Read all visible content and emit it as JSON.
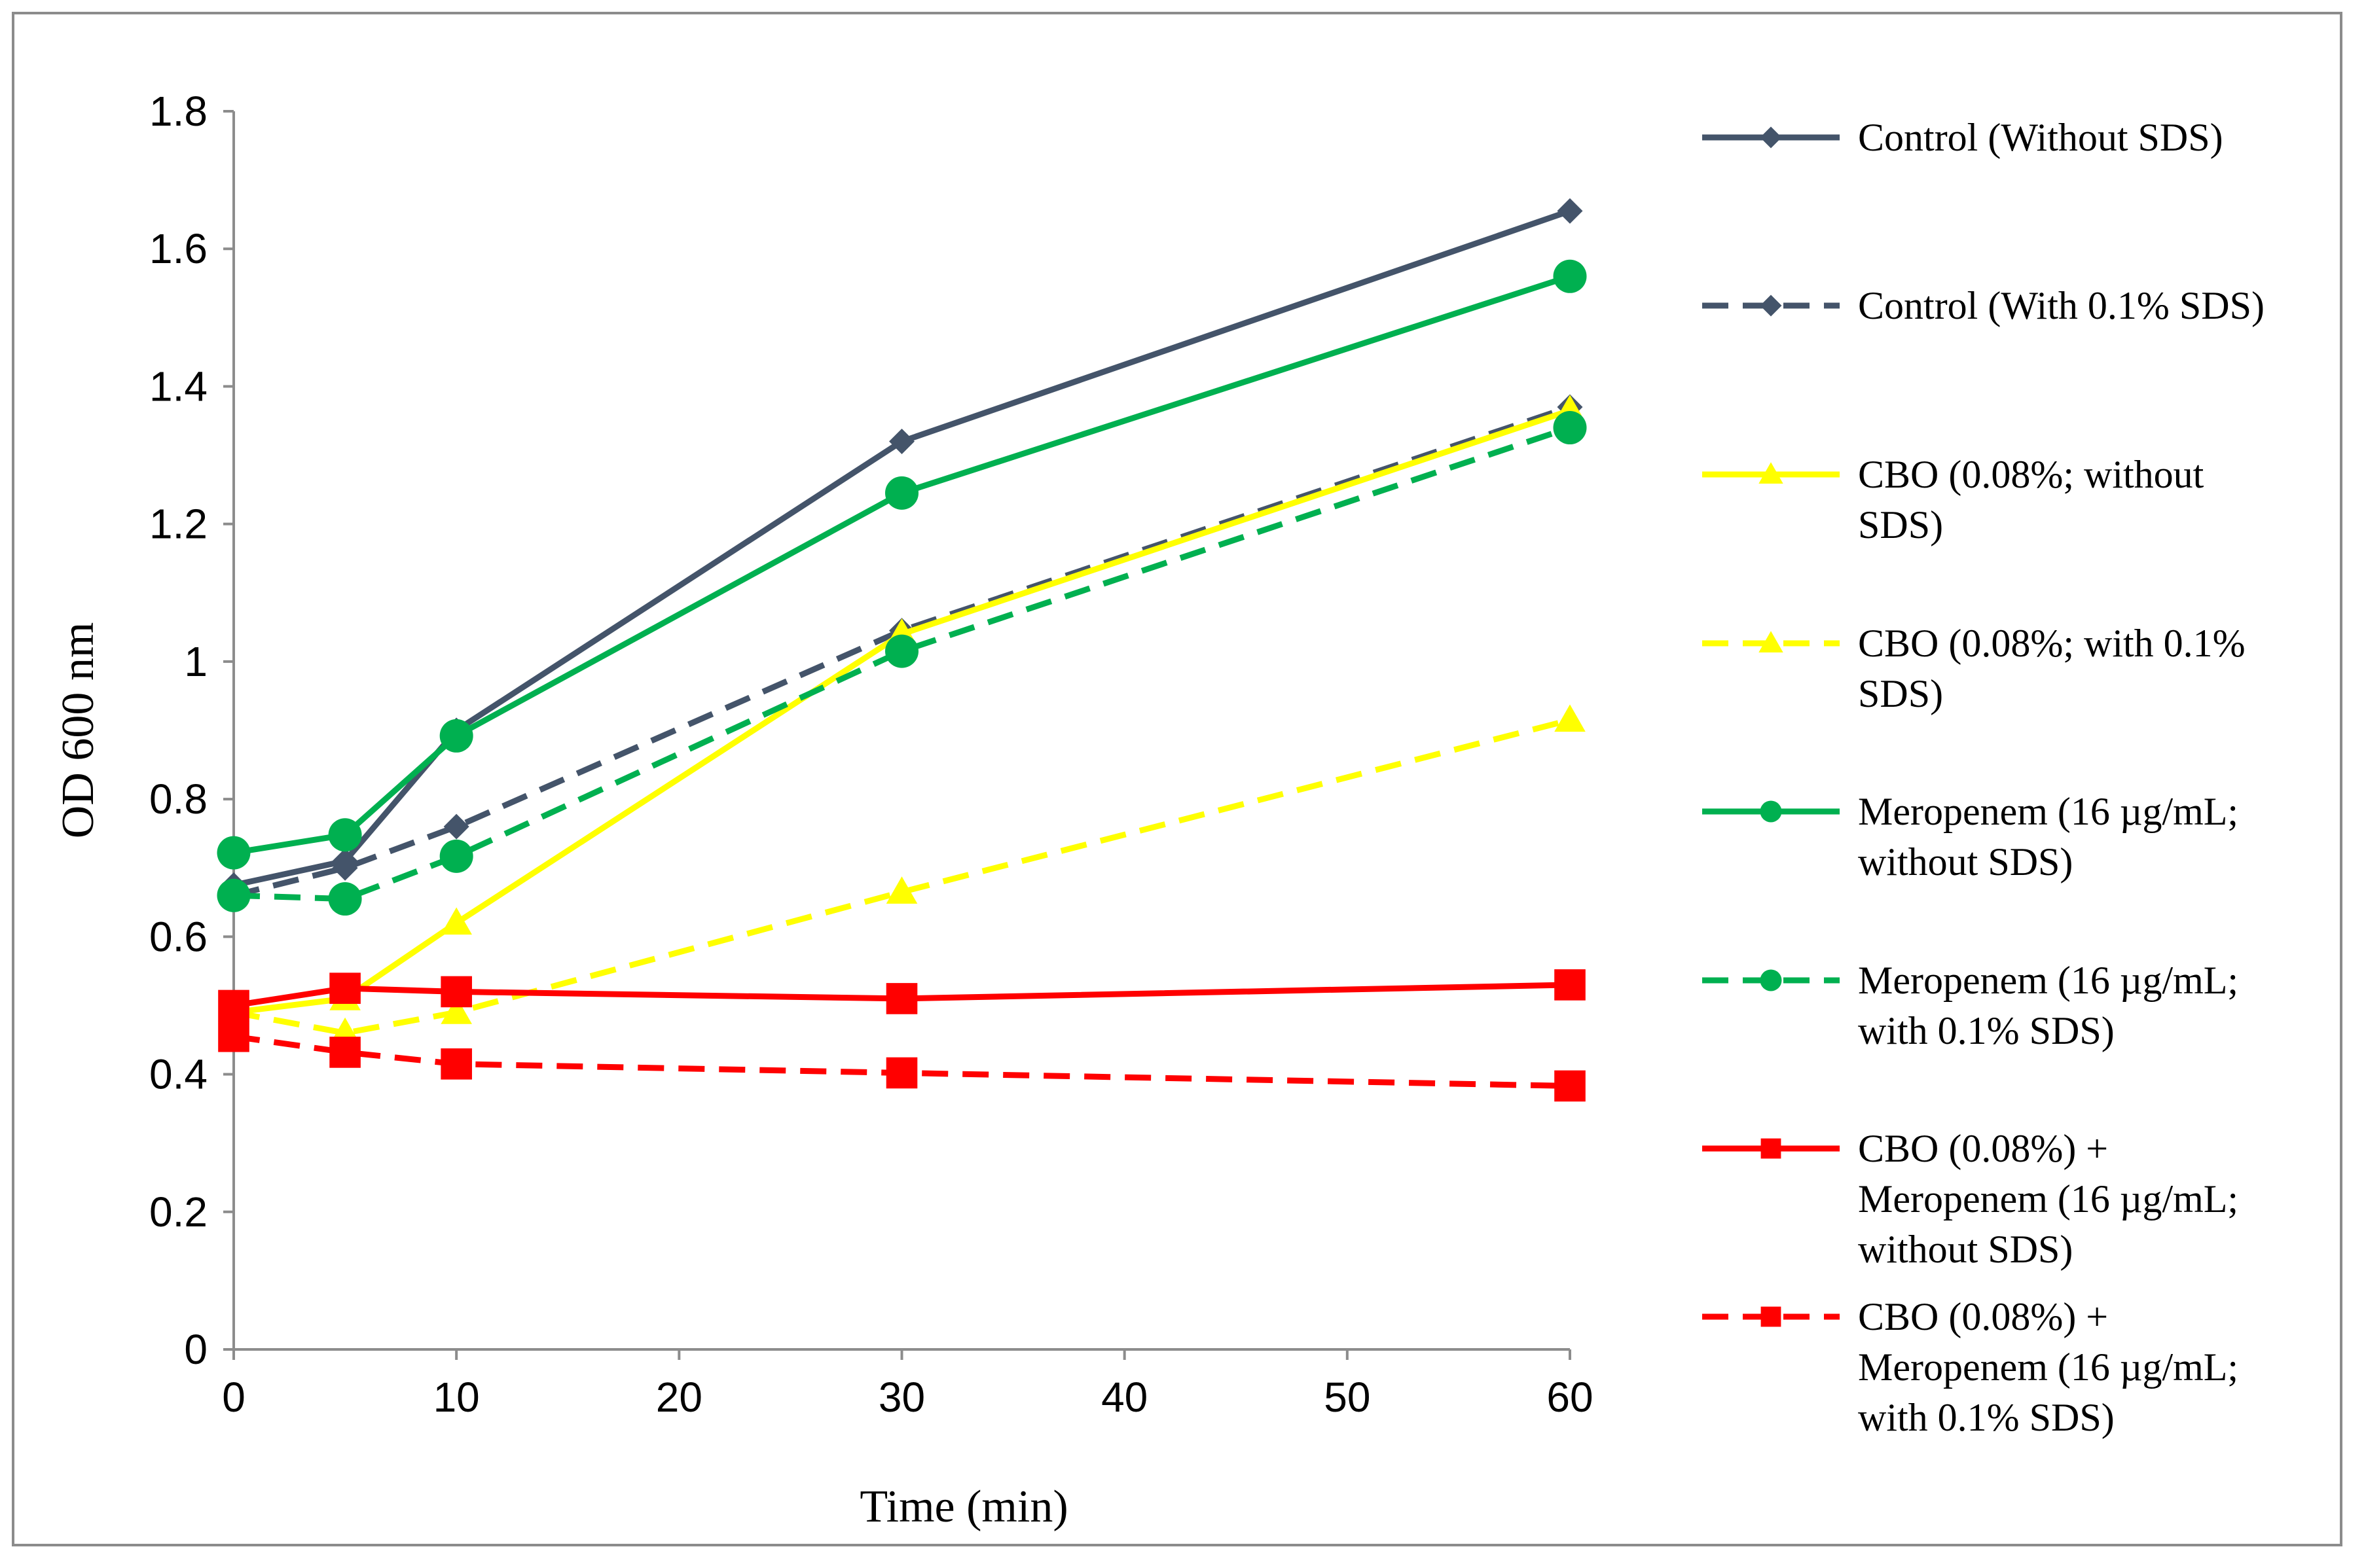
{
  "chart_data": {
    "type": "line",
    "title": "",
    "xlabel": "Time (min)",
    "ylabel": "OD 600 nm",
    "xlim": [
      0,
      60
    ],
    "ylim": [
      0,
      1.8
    ],
    "x_ticks": [
      "0",
      "10",
      "20",
      "30",
      "40",
      "50",
      "60"
    ],
    "y_ticks": [
      "0",
      "0.2",
      "0.4",
      "0.6",
      "0.8",
      "1",
      "1.2",
      "1.4",
      "1.6",
      "1.8"
    ],
    "grid": false,
    "legend_position": "right",
    "x": [
      0,
      5,
      10,
      30,
      60
    ],
    "series": [
      {
        "name": "Control (Without SDS)",
        "legend_lines": [
          "Control (Without SDS)"
        ],
        "color": "#44546A",
        "dash": false,
        "marker": "diamond",
        "values": [
          0.675,
          0.71,
          0.9,
          1.32,
          1.655
        ]
      },
      {
        "name": "Control (With 0.1% SDS)",
        "legend_lines": [
          "Control (With 0.1% SDS)"
        ],
        "color": "#44546A",
        "dash": true,
        "marker": "diamond",
        "values": [
          0.66,
          0.7,
          0.76,
          1.045,
          1.37
        ]
      },
      {
        "name": "CBO (0.08%; without SDS)",
        "legend_lines": [
          "CBO (0.08%; without",
          "SDS)"
        ],
        "color": "#FFFF00",
        "dash": false,
        "marker": "triangle",
        "values": [
          0.49,
          0.51,
          0.62,
          1.04,
          1.365
        ]
      },
      {
        "name": "CBO (0.08%; with 0.1% SDS)",
        "legend_lines": [
          "CBO (0.08%; with 0.1%",
          "SDS)"
        ],
        "color": "#FFFF00",
        "dash": true,
        "marker": "triangle",
        "values": [
          0.49,
          0.46,
          0.49,
          0.665,
          0.915
        ]
      },
      {
        "name": "Meropenem (16 µg/mL; without SDS)",
        "legend_lines": [
          "Meropenem (16 µg/mL;",
          "without SDS)"
        ],
        "color": "#00B050",
        "dash": false,
        "marker": "circle",
        "values": [
          0.722,
          0.748,
          0.892,
          1.245,
          1.56
        ]
      },
      {
        "name": "Meropenem (16 µg/mL; with 0.1% SDS)",
        "legend_lines": [
          "Meropenem (16 µg/mL;",
          "with 0.1% SDS)"
        ],
        "color": "#00B050",
        "dash": true,
        "marker": "circle",
        "values": [
          0.66,
          0.655,
          0.717,
          1.015,
          1.34
        ]
      },
      {
        "name": "CBO (0.08%) + Meropenem (16 µg/mL; without SDS)",
        "legend_lines": [
          "CBO (0.08%) +",
          "Meropenem (16 µg/mL;",
          "without SDS)"
        ],
        "color": "#FF0000",
        "dash": false,
        "marker": "square",
        "values": [
          0.5,
          0.525,
          0.52,
          0.51,
          0.53
        ]
      },
      {
        "name": "CBO (0.08%) + Meropenem (16 µg/mL; with 0.1% SDS)",
        "legend_lines": [
          "CBO (0.08%) +",
          "Meropenem (16 µg/mL;",
          "with 0.1% SDS)"
        ],
        "color": "#FF0000",
        "dash": true,
        "marker": "square",
        "values": [
          0.455,
          0.432,
          0.415,
          0.402,
          0.383
        ]
      }
    ]
  }
}
